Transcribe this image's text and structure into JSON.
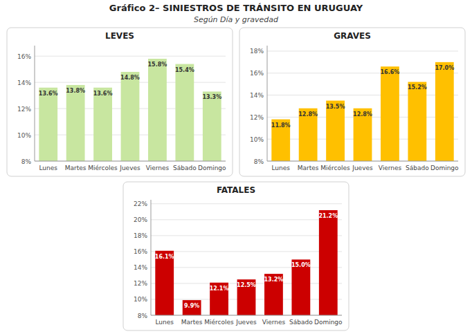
{
  "title": "Gráfico 2– SINIESTROS DE TRÁNSITO EN URUGUAY",
  "subtitle": "Según Día y gravedad",
  "chart_data": [
    {
      "type": "bar",
      "title": "LEVES",
      "categories": [
        "Lunes",
        "Martes",
        "Miércoles",
        "Jueves",
        "Viernes",
        "Sábado",
        "Domingo"
      ],
      "values": [
        13.6,
        13.8,
        13.6,
        14.8,
        15.8,
        15.4,
        13.3
      ],
      "value_labels": [
        "13.6%",
        "13.8%",
        "13.6%",
        "14.8%",
        "15.8%",
        "15.4%",
        "13.3%"
      ],
      "data_labels": true,
      "color": "#c8e6a0",
      "ylim": [
        8,
        16.8
      ],
      "yticks": [
        {
          "value": 8,
          "label": "8%"
        },
        {
          "value": 10,
          "label": "10%"
        },
        {
          "value": 12,
          "label": "12%"
        },
        {
          "value": 14,
          "label": "14%"
        },
        {
          "value": 16,
          "label": "16%"
        }
      ],
      "grid": true
    },
    {
      "type": "bar",
      "title": "GRAVES",
      "categories": [
        "Lunes",
        "Martes",
        "Miércoles",
        "Jueves",
        "Viernes",
        "Sábado",
        "Domingo"
      ],
      "values": [
        11.8,
        12.8,
        13.5,
        12.8,
        16.6,
        15.2,
        17.0
      ],
      "value_labels": [
        "11.8%",
        "12.8%",
        "13.5%",
        "12.8%",
        "16.6%",
        "15.2%",
        "17.0%"
      ],
      "data_labels": true,
      "color": "#ffc000",
      "ylim": [
        8,
        18.5
      ],
      "yticks": [
        {
          "value": 8,
          "label": "8%"
        },
        {
          "value": 10,
          "label": "10%"
        },
        {
          "value": 12,
          "label": "12%"
        },
        {
          "value": 14,
          "label": "14%"
        },
        {
          "value": 16,
          "label": "16%"
        },
        {
          "value": 18,
          "label": "18%"
        }
      ],
      "grid": true
    },
    {
      "type": "bar",
      "title": "FATALES",
      "categories": [
        "Lunes",
        "Martes",
        "Miércoles",
        "Jueves",
        "Viernes",
        "Sábado",
        "Domingo"
      ],
      "values": [
        16.1,
        9.9,
        12.1,
        12.5,
        13.2,
        15.0,
        21.2
      ],
      "value_labels": [
        "16.1%",
        "9.9%",
        "12.1%",
        "12.5%",
        "13.2%",
        "15.0%",
        "21.2%"
      ],
      "data_labels": true,
      "color": "#cc0000",
      "ylim": [
        8,
        22.5
      ],
      "yticks": [
        {
          "value": 8,
          "label": "8%"
        },
        {
          "value": 10,
          "label": "10%"
        },
        {
          "value": 12,
          "label": "12%"
        },
        {
          "value": 14,
          "label": "14%"
        },
        {
          "value": 16,
          "label": "16%"
        },
        {
          "value": 18,
          "label": "18%"
        },
        {
          "value": 20,
          "label": "20%"
        },
        {
          "value": 22,
          "label": "22%"
        }
      ],
      "grid": true
    }
  ]
}
